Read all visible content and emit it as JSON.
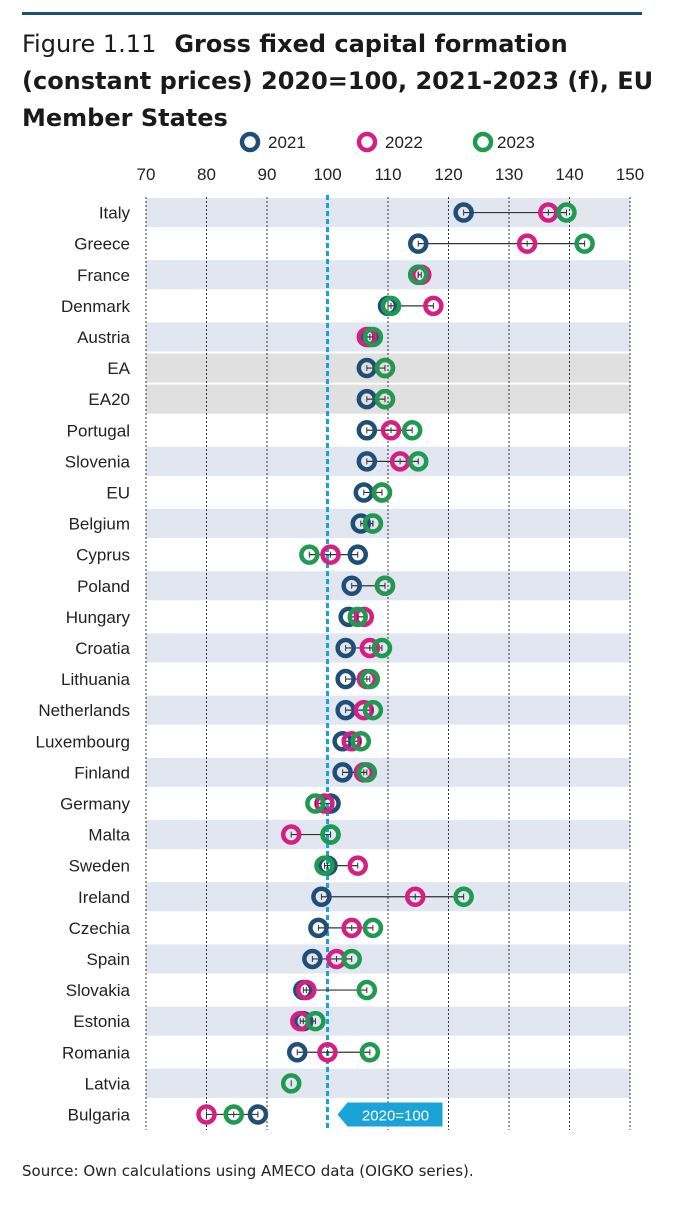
{
  "figure": {
    "label": "Figure 1.11",
    "title": "Gross fixed capital formation (constant prices) 2020=100, 2021-2023 (f), EU Member States"
  },
  "source": "Source: Own calculations using AMECO data (OIGKO series).",
  "colors": {
    "s2021": "#1f4e79",
    "s2022": "#d61f83",
    "s2023": "#1e9b4f",
    "band": "#e1e6f0",
    "aggregate_band": "#e0e0e0",
    "reference": "#1aa3d9"
  },
  "chart_data": {
    "type": "scatter",
    "xlim": [
      70,
      150
    ],
    "x_ticks": [
      "70",
      "80",
      "90",
      "100",
      "110",
      "120",
      "130",
      "140",
      "150"
    ],
    "grid": true,
    "legend_position": "top",
    "reference_line": {
      "x": 100,
      "label": "2020=100"
    },
    "categories": [
      "Italy",
      "Greece",
      "France",
      "Denmark",
      "Austria",
      "EA",
      "EA20",
      "Portugal",
      "Slovenia",
      "EU",
      "Belgium",
      "Cyprus",
      "Poland",
      "Hungary",
      "Croatia",
      "Lithuania",
      "Netherlands",
      "Luxembourg",
      "Finland",
      "Germany",
      "Malta",
      "Sweden",
      "Ireland",
      "Czechia",
      "Spain",
      "Slovakia",
      "Estonia",
      "Romania",
      "Latvia",
      "Bulgaria"
    ],
    "aggregate_categories": [
      "EA",
      "EA20"
    ],
    "series": [
      {
        "name": "2021",
        "values": [
          122.5,
          115,
          115,
          110,
          107,
          106.5,
          106.5,
          106.5,
          106.5,
          106,
          105.5,
          105,
          104,
          103.5,
          103,
          103,
          103,
          102.5,
          102.5,
          100.5,
          100.5,
          100,
          99,
          98.5,
          97.5,
          96,
          96,
          95,
          null,
          88.5
        ]
      },
      {
        "name": "2022",
        "values": [
          136.5,
          133,
          115.5,
          117.5,
          106.5,
          109.5,
          109.5,
          110.5,
          112,
          109,
          107.5,
          100.5,
          109.5,
          106,
          107,
          106.5,
          106,
          104,
          106,
          99.5,
          94,
          105,
          114.5,
          104,
          101.5,
          96.5,
          95.5,
          100,
          null,
          80
        ]
      },
      {
        "name": "2023",
        "values": [
          139.5,
          142.5,
          115,
          110.5,
          107.5,
          109.5,
          109.5,
          114,
          115,
          109,
          107.5,
          97,
          109.5,
          105,
          109,
          107,
          107.5,
          105.5,
          106.5,
          98,
          100.5,
          99.5,
          122.5,
          107.5,
          104,
          106.5,
          98,
          107,
          94,
          84.5
        ]
      }
    ]
  }
}
